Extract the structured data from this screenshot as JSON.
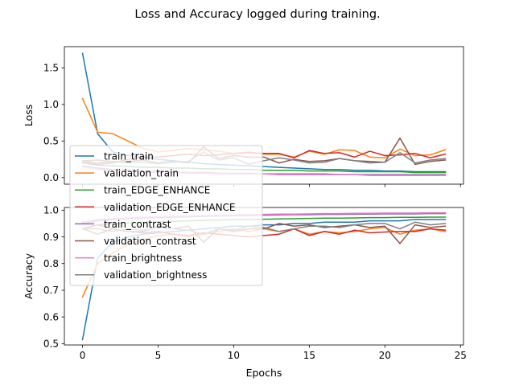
{
  "chart_data": {
    "suptitle": "Loss and Accuracy logged during training.",
    "xlabel": "Epochs",
    "x": [
      0,
      1,
      2,
      3,
      4,
      5,
      6,
      7,
      8,
      9,
      10,
      11,
      12,
      13,
      14,
      15,
      16,
      17,
      18,
      19,
      20,
      21,
      22,
      23,
      24
    ],
    "xlim": [
      -1.2,
      25.2
    ],
    "xticks": [
      0,
      5,
      10,
      15,
      20,
      25
    ],
    "legend": {
      "placement": "upper left of lower panel, overlapping both panels"
    },
    "panels": [
      {
        "type": "line",
        "ylabel": "Loss",
        "ylim": [
          -0.09,
          1.79
        ],
        "yticks": [
          0.0,
          0.5,
          1.0,
          1.5
        ],
        "ytick_labels": [
          "0.0",
          "0.5",
          "1.0",
          "1.5"
        ],
        "show_xtick_labels": false,
        "series": [
          {
            "name": "train_train",
            "color": "#1f77b4",
            "values": [
              1.7,
              0.6,
              0.35,
              0.3,
              0.27,
              0.25,
              0.23,
              0.21,
              0.19,
              0.18,
              0.17,
              0.16,
              0.15,
              0.14,
              0.13,
              0.12,
              0.11,
              0.11,
              0.1,
              0.1,
              0.09,
              0.09,
              0.08,
              0.08,
              0.08
            ]
          },
          {
            "name": "validation_train",
            "color": "#ff7f0e",
            "values": [
              1.08,
              0.62,
              0.6,
              0.5,
              0.4,
              0.35,
              0.37,
              0.4,
              0.38,
              0.36,
              0.33,
              0.35,
              0.32,
              0.32,
              0.28,
              0.36,
              0.32,
              0.38,
              0.37,
              0.28,
              0.27,
              0.39,
              0.3,
              0.31,
              0.38
            ]
          },
          {
            "name": "train_EDGE_ENHANCE",
            "color": "#2ca02c",
            "values": [
              0.2,
              0.17,
              0.16,
              0.15,
              0.14,
              0.14,
              0.13,
              0.13,
              0.12,
              0.12,
              0.11,
              0.11,
              0.1,
              0.1,
              0.1,
              0.09,
              0.09,
              0.09,
              0.08,
              0.08,
              0.08,
              0.08,
              0.07,
              0.07,
              0.07
            ]
          },
          {
            "name": "validation_EDGE_ENHANCE",
            "color": "#d62728",
            "values": [
              0.22,
              0.18,
              0.2,
              0.25,
              0.28,
              0.28,
              0.3,
              0.32,
              0.3,
              0.31,
              0.33,
              0.34,
              0.33,
              0.33,
              0.27,
              0.37,
              0.33,
              0.34,
              0.28,
              0.36,
              0.3,
              0.31,
              0.33,
              0.27,
              0.32
            ]
          },
          {
            "name": "train_contrast",
            "color": "#9467bd",
            "values": [
              0.16,
              0.13,
              0.11,
              0.1,
              0.09,
              0.08,
              0.08,
              0.07,
              0.07,
              0.06,
              0.06,
              0.06,
              0.05,
              0.05,
              0.05,
              0.05,
              0.05,
              0.04,
              0.04,
              0.04,
              0.04,
              0.04,
              0.04,
              0.04,
              0.04
            ]
          },
          {
            "name": "validation_contrast",
            "color": "#8c564b",
            "values": [
              0.23,
              0.24,
              0.22,
              0.22,
              0.24,
              0.2,
              0.22,
              0.2,
              0.42,
              0.26,
              0.3,
              0.28,
              0.28,
              0.2,
              0.25,
              0.22,
              0.23,
              0.26,
              0.23,
              0.22,
              0.21,
              0.54,
              0.18,
              0.22,
              0.24
            ]
          },
          {
            "name": "train_brightness",
            "color": "#e377c2",
            "values": [
              0.15,
              0.11,
              0.1,
              0.09,
              0.08,
              0.07,
              0.07,
              0.06,
              0.06,
              0.05,
              0.05,
              0.05,
              0.05,
              0.04,
              0.04,
              0.04,
              0.04,
              0.04,
              0.04,
              0.03,
              0.03,
              0.03,
              0.03,
              0.03,
              0.03
            ]
          },
          {
            "name": "validation_brightness",
            "color": "#7f7f7f",
            "values": [
              0.23,
              0.2,
              0.22,
              0.2,
              0.21,
              0.19,
              0.21,
              0.22,
              0.35,
              0.24,
              0.27,
              0.18,
              0.23,
              0.27,
              0.24,
              0.2,
              0.21,
              0.26,
              0.23,
              0.2,
              0.21,
              0.34,
              0.2,
              0.24,
              0.26
            ]
          }
        ]
      },
      {
        "type": "line",
        "ylabel": "Accuracy",
        "ylim": [
          0.495,
          1.01
        ],
        "yticks": [
          0.5,
          0.6,
          0.7,
          0.8,
          0.9,
          1.0
        ],
        "ytick_labels": [
          "0.5",
          "0.6",
          "0.7",
          "0.8",
          "0.9",
          "1.0"
        ],
        "show_xtick_labels": true,
        "xtick_labels": [
          "0",
          "5",
          "10",
          "15",
          "20",
          "25"
        ],
        "series": [
          {
            "name": "train_train",
            "color": "#1f77b4",
            "values": [
              0.515,
              0.82,
              0.88,
              0.9,
              0.91,
              0.915,
              0.92,
              0.925,
              0.93,
              0.935,
              0.94,
              0.94,
              0.945,
              0.945,
              0.95,
              0.95,
              0.955,
              0.955,
              0.955,
              0.96,
              0.96,
              0.96,
              0.965,
              0.965,
              0.965
            ]
          },
          {
            "name": "validation_train",
            "color": "#ff7f0e",
            "values": [
              0.675,
              0.8,
              0.84,
              0.87,
              0.89,
              0.905,
              0.91,
              0.9,
              0.91,
              0.92,
              0.93,
              0.92,
              0.93,
              0.92,
              0.93,
              0.91,
              0.92,
              0.915,
              0.92,
              0.93,
              0.935,
              0.91,
              0.925,
              0.93,
              0.92
            ]
          },
          {
            "name": "train_EDGE_ENHANCE",
            "color": "#2ca02c",
            "values": [
              0.93,
              0.945,
              0.95,
              0.952,
              0.955,
              0.957,
              0.958,
              0.96,
              0.962,
              0.963,
              0.965,
              0.965,
              0.966,
              0.967,
              0.968,
              0.969,
              0.97,
              0.97,
              0.971,
              0.972,
              0.972,
              0.973,
              0.973,
              0.974,
              0.974
            ]
          },
          {
            "name": "validation_EDGE_ENHANCE",
            "color": "#d62728",
            "values": [
              0.93,
              0.945,
              0.93,
              0.92,
              0.915,
              0.92,
              0.91,
              0.905,
              0.915,
              0.91,
              0.905,
              0.9,
              0.905,
              0.91,
              0.93,
              0.905,
              0.92,
              0.91,
              0.925,
              0.915,
              0.918,
              0.92,
              0.92,
              0.93,
              0.925
            ]
          },
          {
            "name": "train_contrast",
            "color": "#9467bd",
            "values": [
              0.95,
              0.96,
              0.965,
              0.968,
              0.97,
              0.972,
              0.974,
              0.975,
              0.977,
              0.978,
              0.979,
              0.98,
              0.981,
              0.982,
              0.983,
              0.983,
              0.984,
              0.984,
              0.985,
              0.985,
              0.986,
              0.986,
              0.986,
              0.987,
              0.987
            ]
          },
          {
            "name": "validation_contrast",
            "color": "#8c564b",
            "values": [
              0.93,
              0.91,
              0.93,
              0.92,
              0.92,
              0.94,
              0.93,
              0.94,
              0.88,
              0.93,
              0.92,
              0.93,
              0.93,
              0.95,
              0.94,
              0.945,
              0.935,
              0.94,
              0.945,
              0.935,
              0.94,
              0.875,
              0.945,
              0.935,
              0.94
            ]
          },
          {
            "name": "train_brightness",
            "color": "#e377c2",
            "values": [
              0.955,
              0.965,
              0.968,
              0.971,
              0.973,
              0.975,
              0.977,
              0.978,
              0.98,
              0.981,
              0.982,
              0.983,
              0.984,
              0.985,
              0.985,
              0.986,
              0.987,
              0.987,
              0.988,
              0.988,
              0.989,
              0.989,
              0.989,
              0.99,
              0.99
            ]
          },
          {
            "name": "validation_brightness",
            "color": "#7f7f7f",
            "values": [
              0.93,
              0.93,
              0.92,
              0.93,
              0.925,
              0.935,
              0.93,
              0.925,
              0.91,
              0.93,
              0.925,
              0.94,
              0.935,
              0.92,
              0.93,
              0.94,
              0.94,
              0.935,
              0.945,
              0.95,
              0.95,
              0.93,
              0.955,
              0.945,
              0.95
            ]
          }
        ]
      }
    ]
  }
}
